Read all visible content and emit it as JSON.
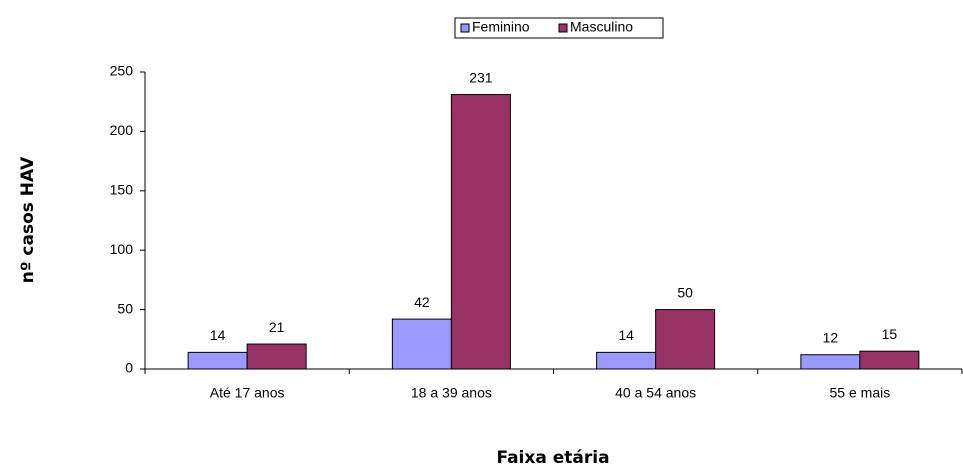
{
  "chart_data": {
    "type": "bar",
    "x_label": "Faixa etária",
    "y_label": "nº casos HAV",
    "categories": [
      "Até 17 anos",
      "18 a 39 anos",
      "40 a 54 anos",
      "55 e mais"
    ],
    "series": [
      {
        "name": "Feminino",
        "color": "#9999ff",
        "values": [
          14,
          42,
          14,
          12
        ]
      },
      {
        "name": "Masculino",
        "color": "#993366",
        "values": [
          21,
          231,
          50,
          15
        ]
      }
    ],
    "ylim": [
      0,
      250
    ],
    "yticks": [
      0,
      50,
      100,
      150,
      200,
      250
    ],
    "grid": false,
    "legend": "top"
  }
}
